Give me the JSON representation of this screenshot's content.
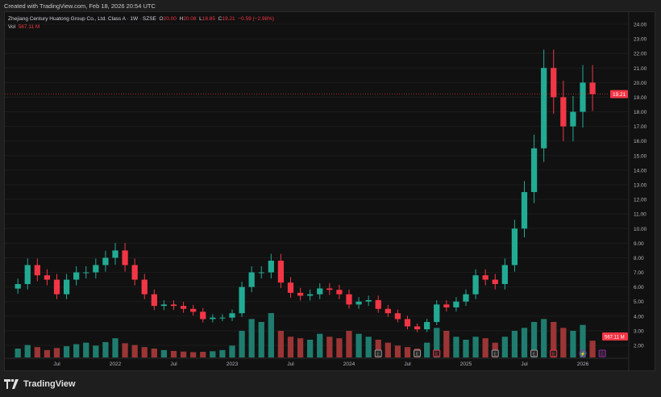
{
  "created": "Created with TradingView.com, Feb 18, 2026 20:54 UTC",
  "legend": {
    "symbol": "Zhejiang Century Huatong Group Co., Ltd. Class A · 1W · SZSE",
    "o_label": "O",
    "o": "20.00",
    "h_label": "H",
    "h": "20.08",
    "l_label": "L",
    "l": "18.85",
    "c_label": "C",
    "c": "19.21",
    "change": "−0.59 (−2.98%)",
    "vol_label": "Vol",
    "vol": "567.11 M"
  },
  "brand": "TradingView",
  "colors": {
    "up": "#22ab94",
    "down": "#f23645",
    "up_vol": "#1f7d6f",
    "down_vol": "#9c3535",
    "earnings": "#9e9e9e",
    "dividend": "#9c27b0"
  },
  "chart_data": {
    "type": "candlestick",
    "ylim": [
      2,
      24
    ],
    "yticks": [
      "24.00",
      "23.00",
      "22.00",
      "21.00",
      "20.00",
      "19.00",
      "18.00",
      "17.00",
      "16.00",
      "15.00",
      "14.00",
      "13.00",
      "12.00",
      "11.00",
      "10.00",
      "9.00",
      "8.00",
      "7.00",
      "6.00",
      "5.00",
      "4.00",
      "3.00",
      "2.00"
    ],
    "xticks": [
      "Jul",
      "2022",
      "Jul",
      "2023",
      "Jul",
      "2024",
      "Jul",
      "2025",
      "Jul",
      "2026"
    ],
    "last_price": "19.21",
    "last_volume": "567.11 M",
    "x": [
      "2021-03",
      "2021-04",
      "2021-05",
      "2021-06",
      "2021-07",
      "2021-08",
      "2021-09",
      "2021-10",
      "2021-11",
      "2021-12",
      "2022-01",
      "2022-02",
      "2022-03",
      "2022-04",
      "2022-05",
      "2022-06",
      "2022-07",
      "2022-08",
      "2022-09",
      "2022-10",
      "2022-11",
      "2022-12",
      "2023-01",
      "2023-02",
      "2023-03",
      "2023-04",
      "2023-05",
      "2023-06",
      "2023-07",
      "2023-08",
      "2023-09",
      "2023-10",
      "2023-11",
      "2023-12",
      "2024-01",
      "2024-02",
      "2024-03",
      "2024-04",
      "2024-05",
      "2024-06",
      "2024-07",
      "2024-08",
      "2024-09",
      "2024-10",
      "2024-11",
      "2024-12",
      "2025-01",
      "2025-02",
      "2025-03",
      "2025-04",
      "2025-05",
      "2025-06",
      "2025-07",
      "2025-08",
      "2025-09",
      "2025-10",
      "2025-11",
      "2025-12",
      "2026-01",
      "2026-02"
    ],
    "close": [
      6.2,
      7.5,
      6.8,
      6.5,
      5.5,
      6.5,
      7.0,
      7.0,
      7.5,
      8.0,
      8.5,
      7.5,
      6.5,
      5.5,
      4.7,
      4.8,
      4.7,
      4.5,
      4.3,
      3.8,
      3.9,
      3.9,
      4.2,
      6.0,
      7.0,
      7.0,
      7.8,
      6.3,
      5.6,
      5.4,
      5.5,
      5.9,
      5.8,
      5.5,
      4.8,
      5.0,
      5.1,
      4.5,
      4.2,
      3.8,
      3.3,
      3.1,
      3.6,
      4.8,
      4.6,
      5.0,
      5.5,
      6.8,
      6.5,
      6.2,
      7.5,
      10.0,
      12.5,
      15.5,
      21.0,
      19.0,
      17.0,
      18.0,
      20.0,
      19.21
    ],
    "volume_m": [
      300,
      420,
      350,
      250,
      320,
      380,
      450,
      500,
      400,
      520,
      650,
      480,
      420,
      350,
      300,
      250,
      220,
      200,
      180,
      190,
      210,
      250,
      400,
      900,
      1300,
      1200,
      1500,
      900,
      700,
      650,
      600,
      800,
      700,
      650,
      900,
      800,
      700,
      600,
      500,
      400,
      350,
      300,
      500,
      1000,
      900,
      700,
      600,
      700,
      650,
      500,
      700,
      900,
      1000,
      1200,
      1300,
      1200,
      1000,
      900,
      1100,
      567.11
    ],
    "events": [
      {
        "type": "earnings",
        "label": "E",
        "date": "2024-04"
      },
      {
        "type": "earnings",
        "label": "E",
        "date": "2024-08"
      },
      {
        "type": "earnings",
        "label": "E",
        "date": "2024-10"
      },
      {
        "type": "earnings",
        "label": "E",
        "date": "2025-04"
      },
      {
        "type": "earnings",
        "label": "E",
        "date": "2025-08"
      },
      {
        "type": "earnings",
        "label": "E",
        "date": "2025-10"
      },
      {
        "type": "dividend",
        "label": "⚡",
        "date": "2026-01"
      },
      {
        "type": "earnings",
        "label": "E",
        "date": "2026-03"
      }
    ]
  }
}
